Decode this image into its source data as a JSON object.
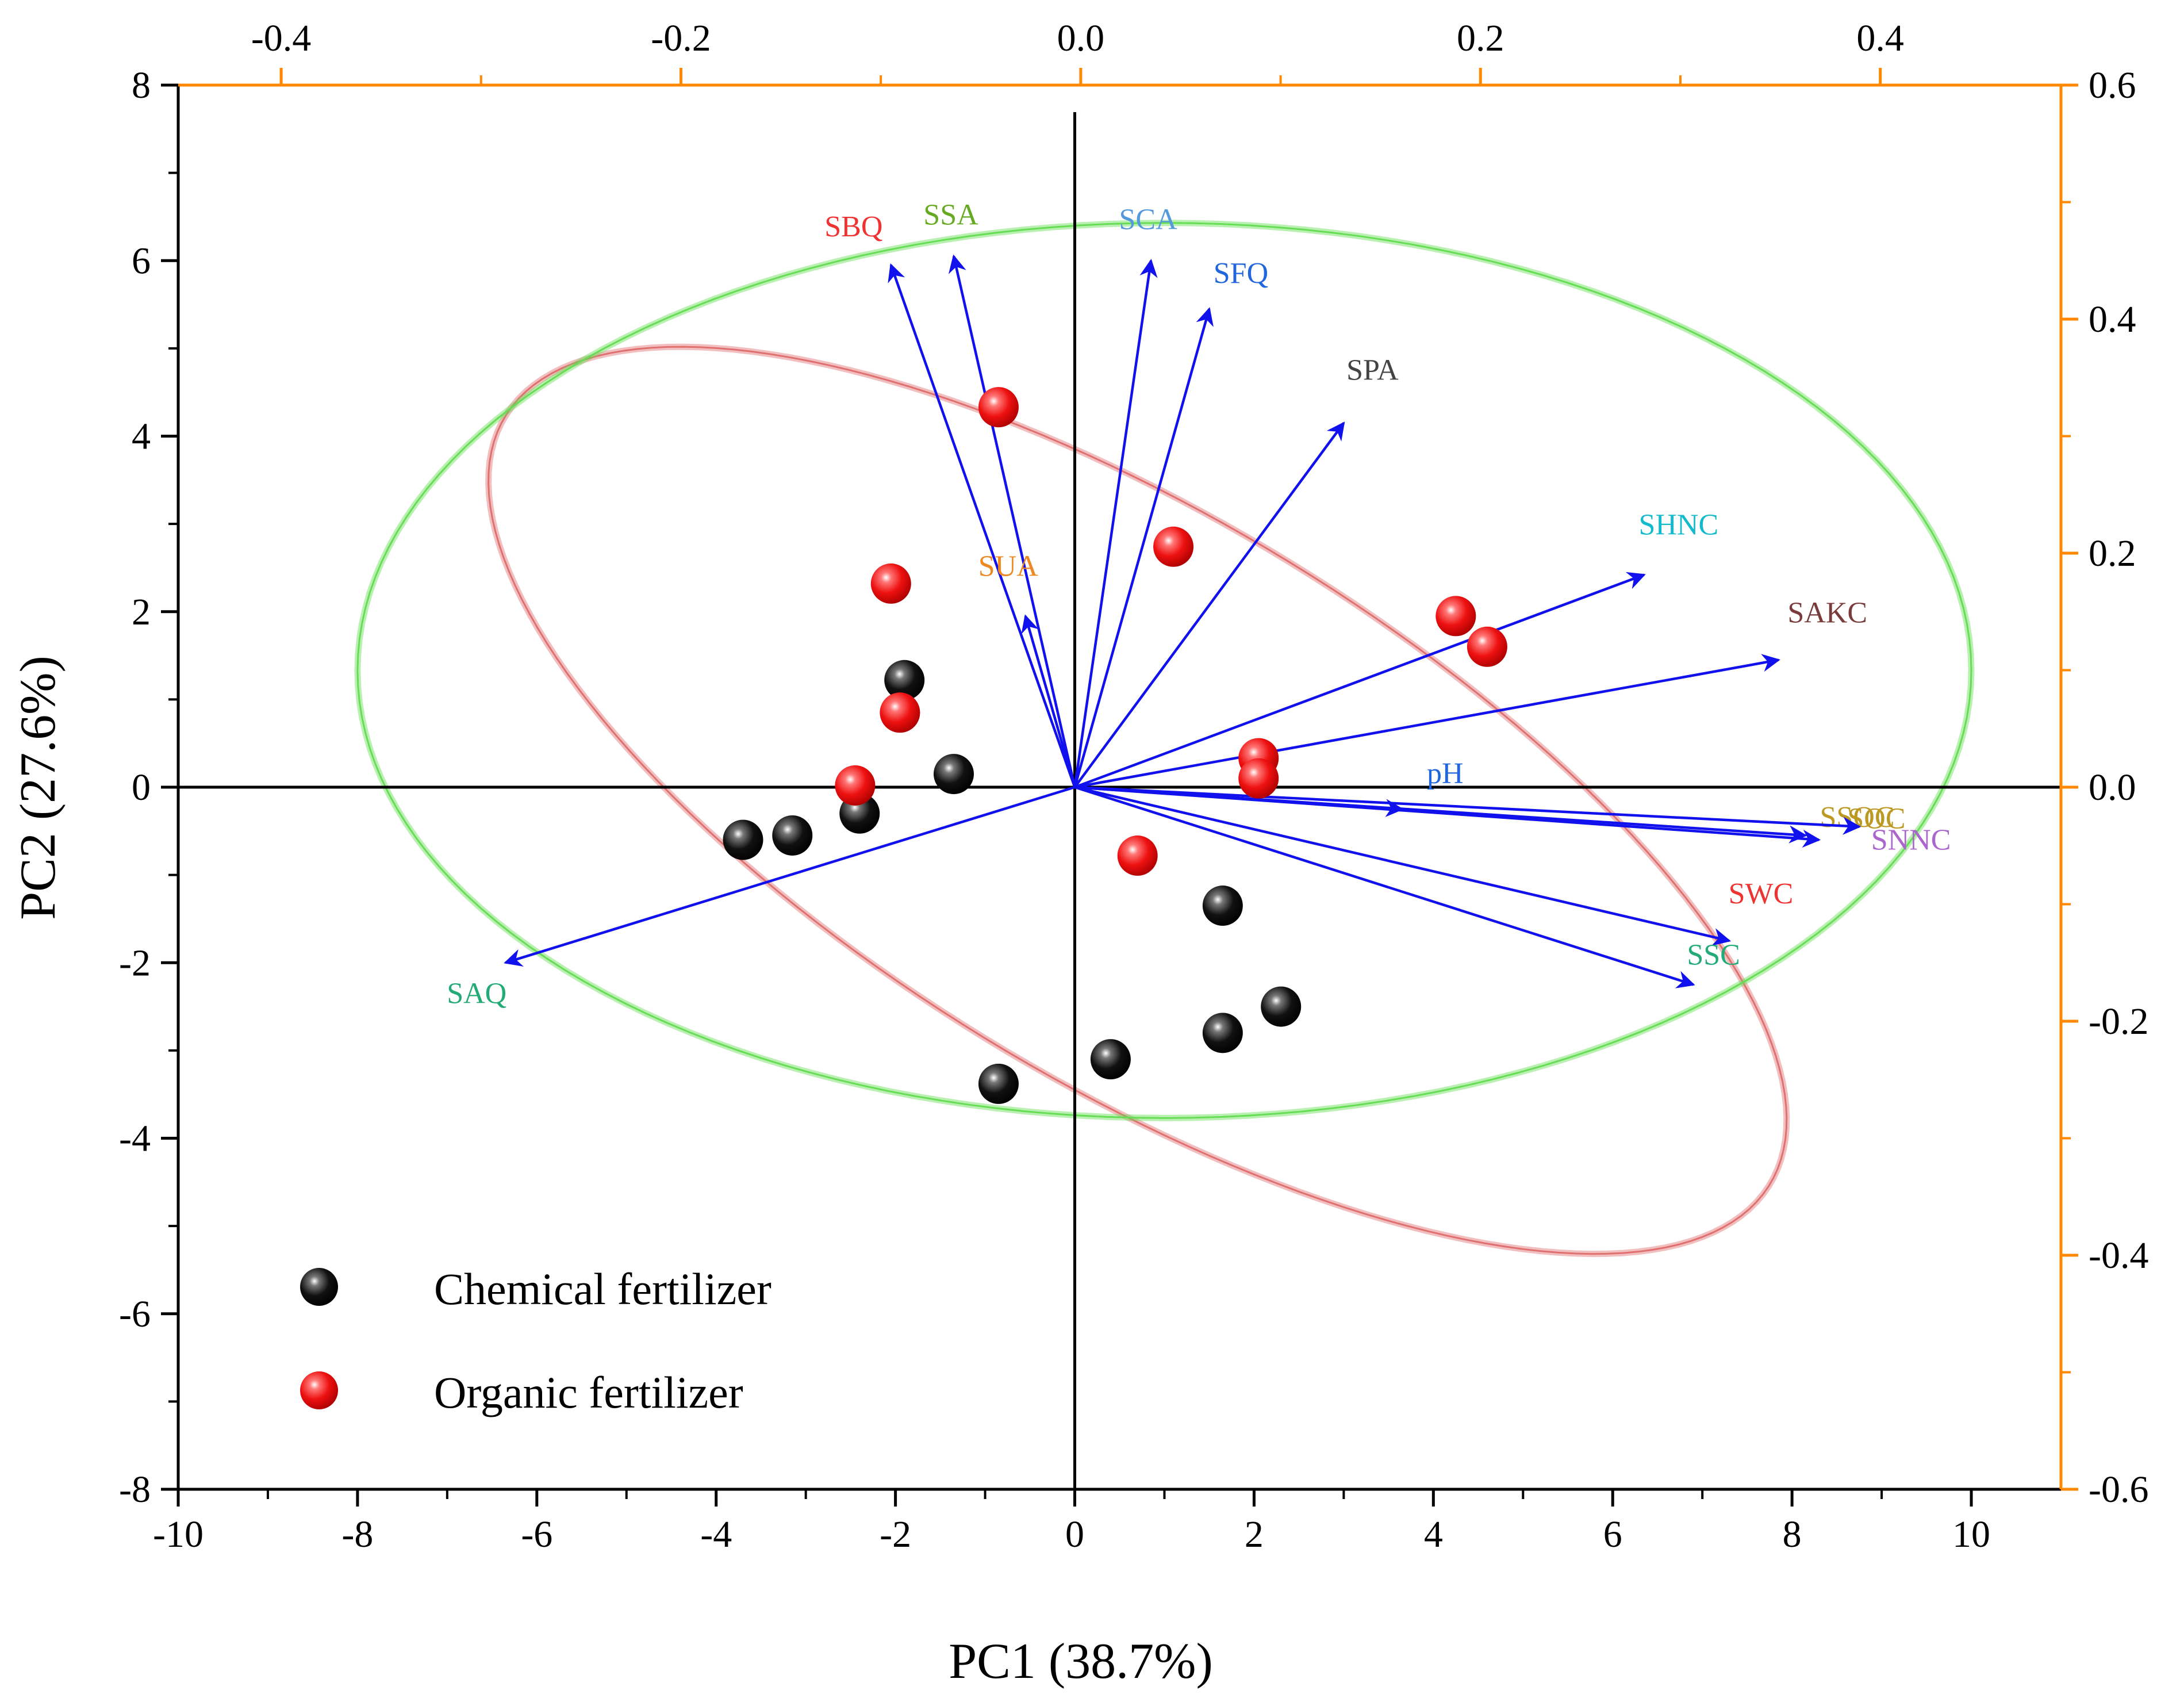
{
  "chart_data": {
    "type": "scatter",
    "title": "",
    "xlabel": "PC1 (38.7%)",
    "ylabel": "PC2 (27.6%)",
    "xlim": [
      -10,
      11
    ],
    "ylim": [
      -8,
      8
    ],
    "x_ticks": [
      "-10",
      "-8",
      "-6",
      "-4",
      "-2",
      "0",
      "2",
      "4",
      "6",
      "8",
      "10"
    ],
    "y_ticks": [
      "-8",
      "-6",
      "-4",
      "-2",
      "0",
      "2",
      "4",
      "6",
      "8"
    ],
    "top_axis": {
      "range": [
        -0.4515,
        0.4904
      ],
      "ticks": [
        "-0.4",
        "-0.2",
        "0.0",
        "0.2",
        "0.4"
      ]
    },
    "right_axis": {
      "range": [
        -0.6,
        0.6
      ],
      "ticks": [
        "-0.6",
        "-0.4",
        "-0.2",
        "0.0",
        "0.2",
        "0.4",
        "0.6"
      ]
    },
    "series": [
      {
        "name": "Chemical fertilizer",
        "color": "#111111",
        "points": [
          [
            -3.7,
            -0.6
          ],
          [
            -3.15,
            -0.55
          ],
          [
            -2.4,
            -0.3
          ],
          [
            -1.9,
            1.22
          ],
          [
            -1.35,
            0.15
          ],
          [
            -0.85,
            -3.38
          ],
          [
            0.4,
            -3.1
          ],
          [
            1.65,
            -1.35
          ],
          [
            1.65,
            -2.8
          ],
          [
            2.3,
            -2.5
          ]
        ]
      },
      {
        "name": "Organic fertilizer",
        "color": "#ee1111",
        "points": [
          [
            -2.45,
            0.02
          ],
          [
            -2.05,
            2.32
          ],
          [
            -1.95,
            0.85
          ],
          [
            -0.85,
            4.33
          ],
          [
            0.7,
            -0.78
          ],
          [
            1.1,
            2.74
          ],
          [
            2.05,
            0.33
          ],
          [
            2.05,
            0.1
          ],
          [
            4.25,
            1.95
          ],
          [
            4.6,
            1.6
          ]
        ]
      }
    ],
    "loadings": [
      {
        "label": "SBQ",
        "x": -2.05,
        "y": 5.95,
        "color": "#ee3333"
      },
      {
        "label": "SSA",
        "x": -1.35,
        "y": 6.05,
        "color": "#66aa22"
      },
      {
        "label": "SCA",
        "x": 0.85,
        "y": 6.0,
        "color": "#5599dd"
      },
      {
        "label": "SFQ",
        "x": 1.5,
        "y": 5.45,
        "color": "#2266dd"
      },
      {
        "label": "SPA",
        "x": 3.0,
        "y": 4.15,
        "color": "#444444"
      },
      {
        "label": "SUA",
        "x": -0.55,
        "y": 1.95,
        "color": "#ee8822"
      },
      {
        "label": "SHNC",
        "x": 6.35,
        "y": 2.42,
        "color": "#11bbcc"
      },
      {
        "label": "SAKC",
        "x": 7.85,
        "y": 1.45,
        "color": "#7a3b3b"
      },
      {
        "label": "pH",
        "x": 3.65,
        "y": -0.25,
        "color": "#2266dd"
      },
      {
        "label": "SSOC",
        "x": 8.15,
        "y": -0.55,
        "color": "#bb9922"
      },
      {
        "label": "SOC",
        "x": 8.3,
        "y": -0.6,
        "color": "#bb9922"
      },
      {
        "label": "SNNC",
        "x": 8.75,
        "y": -0.45,
        "color": "#aa66cc"
      },
      {
        "label": "SWC",
        "x": 7.3,
        "y": -1.75,
        "color": "#ee3333"
      },
      {
        "label": "SSC",
        "x": 6.9,
        "y": -2.25,
        "color": "#22aa77"
      },
      {
        "label": "SAQ",
        "x": -6.35,
        "y": -2.0,
        "color": "#22aa77"
      }
    ],
    "ellipses": [
      {
        "group": "Organic fertilizer",
        "color": "#e07070"
      },
      {
        "group": "Chemical fertilizer",
        "color": "#66dd55"
      }
    ],
    "axis_colors": {
      "primary": "#000000",
      "secondary": "#ff8800",
      "arrows": "#1111ee"
    },
    "legend": {
      "position": "bottom-left"
    }
  }
}
